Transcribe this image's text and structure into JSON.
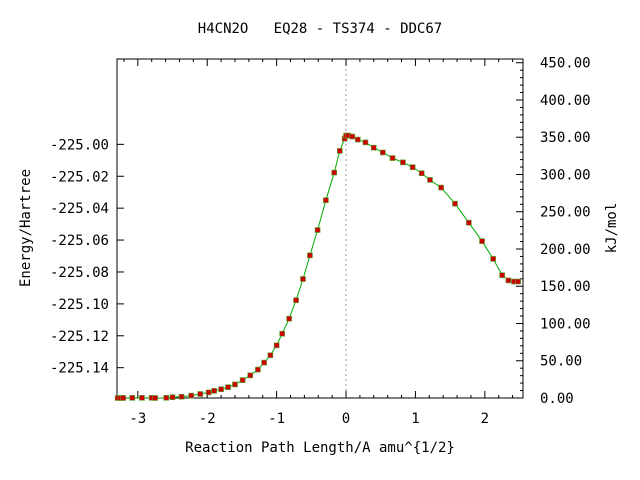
{
  "chart_data": {
    "type": "line",
    "title": "H4CN2O   EQ28 - TS374 - DDC67",
    "xlabel": "Reaction Path Length/A amu^{1/2}",
    "ylabel": "Energy/Hartree",
    "ylabel_right": "kJ/mol",
    "xlim": [
      -3.3,
      2.55
    ],
    "ylim": [
      -225.159,
      -224.9465
    ],
    "ylim_right": [
      0,
      455
    ],
    "x_ticks": [
      -3,
      -2,
      -1,
      0,
      1,
      2
    ],
    "x_tick_labels": [
      "-3",
      "-2",
      "-1",
      "0",
      "1",
      "2"
    ],
    "y_ticks": [
      -225.0,
      -225.02,
      -225.04,
      -225.06,
      -225.08,
      -225.1,
      -225.12,
      -225.14
    ],
    "y_tick_labels": [
      "-225.00",
      "-225.02",
      "-225.04",
      "-225.06",
      "-225.08",
      "-225.10",
      "-225.12",
      "-225.14"
    ],
    "y2_ticks": [
      0,
      50,
      100,
      150,
      200,
      250,
      300,
      350,
      400,
      450
    ],
    "y2_tick_labels": [
      "0.00",
      "50.00",
      "100.00",
      "150.00",
      "200.00",
      "250.00",
      "300.00",
      "350.00",
      "400.00",
      "450.00"
    ],
    "ts_marker_x": 0,
    "grid": false,
    "line_color": "#00aa00",
    "marker_color": "#cc0000",
    "series": [
      {
        "x": [
          -3.29,
          -3.25,
          -3.21,
          -3.08,
          -2.94,
          -2.8,
          -2.75,
          -2.59,
          -2.5,
          -2.37,
          -2.23,
          -2.1,
          -1.98,
          -1.9,
          -1.8,
          -1.7,
          -1.6,
          -1.49,
          -1.38,
          -1.27,
          -1.18,
          -1.09,
          -1.0,
          -0.92,
          -0.82,
          -0.72,
          -0.62,
          -0.52,
          -0.41,
          -0.29,
          -0.17,
          -0.09,
          -0.02,
          0.0,
          0.03,
          0.09,
          0.17,
          0.28,
          0.4,
          0.53,
          0.67,
          0.82,
          0.96,
          1.09,
          1.21,
          1.37,
          1.57,
          1.77,
          1.96,
          2.12,
          2.25,
          2.34,
          2.42,
          2.48
        ],
        "y": [
          -225.159,
          -225.159,
          -225.159,
          -225.1589,
          -225.1589,
          -225.1589,
          -225.159,
          -225.1589,
          -225.1585,
          -225.1582,
          -225.1575,
          -225.1565,
          -225.1555,
          -225.1545,
          -225.1535,
          -225.1522,
          -225.1505,
          -225.1478,
          -225.1448,
          -225.1412,
          -225.1368,
          -225.1322,
          -225.126,
          -225.1187,
          -225.1093,
          -225.0977,
          -225.0844,
          -225.0696,
          -225.0537,
          -225.035,
          -225.0177,
          -225.0041,
          -224.9964,
          -224.9945,
          -224.9945,
          -224.9951,
          -224.997,
          -224.9988,
          -225.0021,
          -225.0051,
          -225.0086,
          -225.0113,
          -225.0143,
          -225.0181,
          -225.0223,
          -225.0271,
          -225.0372,
          -225.0491,
          -225.0607,
          -225.0718,
          -225.082,
          -225.0853,
          -225.086,
          -225.086
        ]
      }
    ]
  }
}
